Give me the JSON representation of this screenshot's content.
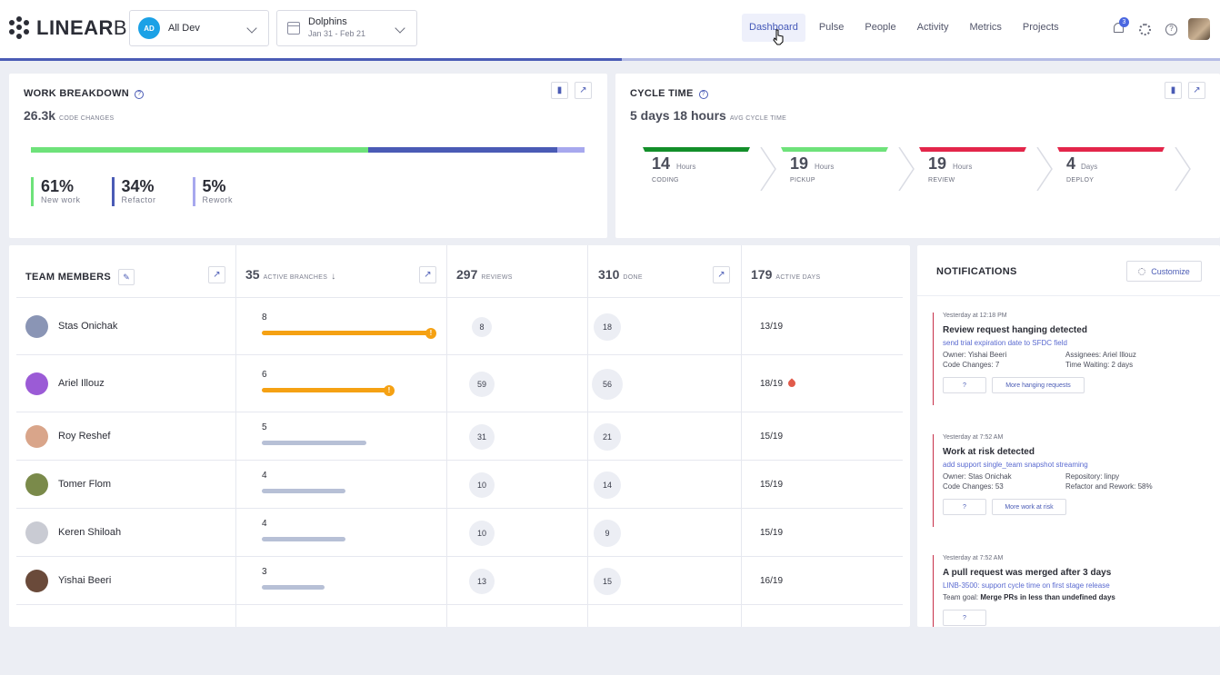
{
  "brand": {
    "bold": "LINEAR",
    "light": "B"
  },
  "team_select": {
    "initials": "AD",
    "label": "All Dev"
  },
  "date_select": {
    "team": "Dolphins",
    "range": "Jan 31 - Feb 21"
  },
  "nav": [
    "Dashboard",
    "Pulse",
    "People",
    "Activity",
    "Metrics",
    "Projects"
  ],
  "nav_active": "Dashboard",
  "notifications_count": "3",
  "page_progress": 0.51,
  "work_breakdown": {
    "title": "WORK BREAKDOWN",
    "total": "26.3k",
    "total_label": "CODE CHANGES",
    "items": [
      {
        "pct": "61%",
        "label": "New work",
        "color": "#6ee27a",
        "share": 61
      },
      {
        "pct": "34%",
        "label": "Refactor",
        "color": "#4a5bb5",
        "share": 34
      },
      {
        "pct": "5%",
        "label": "Rework",
        "color": "#a7a8ee",
        "share": 5
      }
    ]
  },
  "cycle_time": {
    "title": "CYCLE TIME",
    "avg": "5 days 18 hours",
    "avg_label": "AVG CYCLE TIME",
    "stages": [
      {
        "value": "14",
        "unit": "Hours",
        "name": "CODING",
        "color": "#138f2a"
      },
      {
        "value": "19",
        "unit": "Hours",
        "name": "PICKUP",
        "color": "#6ee27a"
      },
      {
        "value": "19",
        "unit": "Hours",
        "name": "REVIEW",
        "color": "#e3264a"
      },
      {
        "value": "4",
        "unit": "Days",
        "name": "DEPLOY",
        "color": "#e3264a"
      }
    ]
  },
  "team_table": {
    "title": "TEAM MEMBERS",
    "headers": [
      {
        "num": "35",
        "label": "ACTIVE BRANCHES"
      },
      {
        "num": "297",
        "label": "REVIEWS"
      },
      {
        "num": "310",
        "label": "DONE"
      },
      {
        "num": "179",
        "label": "ACTIVE DAYS"
      }
    ],
    "rows": [
      {
        "name": "Stas Onichak",
        "branches": "8",
        "reviews": "8",
        "done": "18",
        "days": "13/19",
        "warn": true,
        "avatar": "#8a95b5"
      },
      {
        "name": "Ariel Illouz",
        "branches": "6",
        "reviews": "59",
        "done": "56",
        "days": "18/19",
        "warn": true,
        "fire": true,
        "avatar": "#9b5bd6"
      },
      {
        "name": "Roy Reshef",
        "branches": "5",
        "reviews": "31",
        "done": "21",
        "days": "15/19",
        "avatar": "#d9a58a"
      },
      {
        "name": "Tomer Flom",
        "branches": "4",
        "reviews": "10",
        "done": "14",
        "days": "15/19",
        "avatar": "#7a8a4a"
      },
      {
        "name": "Keren Shiloah",
        "branches": "4",
        "reviews": "10",
        "done": "9",
        "days": "15/19",
        "avatar": "#c9cbd3"
      },
      {
        "name": "Yishai Beeri",
        "branches": "3",
        "reviews": "13",
        "done": "15",
        "days": "16/19",
        "avatar": "#6a4a3a"
      }
    ]
  },
  "notifications": {
    "title": "NOTIFICATIONS",
    "customize": "Customize",
    "items": [
      {
        "time": "Yesterday at 12:18 PM",
        "title": "Review request hanging detected",
        "link": "send trial expiration date to SFDC field",
        "details": [
          "Owner: Yishai Beeri",
          "Assignees: Ariel Illouz",
          "Code Changes: 7",
          "Time Waiting: 2 days"
        ],
        "buttons": [
          "?",
          "More hanging requests"
        ]
      },
      {
        "time": "Yesterday at 7:52 AM",
        "title": "Work at risk detected",
        "link": "add support single_team snapshot streaming",
        "details": [
          "Owner: Stas Onichak",
          "Repository: linpy",
          "Code Changes: 53",
          "Refactor and Rework: 58%"
        ],
        "buttons": [
          "?",
          "More work at risk"
        ]
      },
      {
        "time": "Yesterday at 7:52 AM",
        "title": "A pull request was merged after 3 days",
        "link": "LINB-3500: support cycle time on first stage release",
        "goal_prefix": "Team goal:",
        "goal": "Merge PRs in less than undefined days",
        "buttons": [
          "?"
        ]
      }
    ]
  }
}
